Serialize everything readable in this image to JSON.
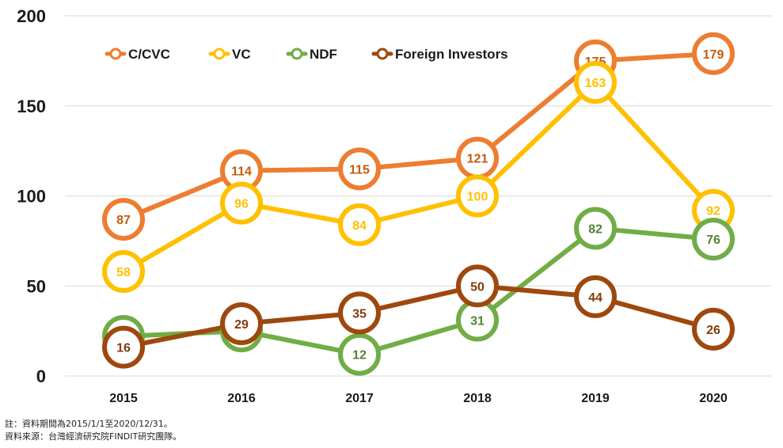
{
  "chart_data": {
    "type": "line",
    "title": "",
    "xlabel": "",
    "ylabel": "",
    "categories": [
      "2015",
      "2016",
      "2017",
      "2018",
      "2019",
      "2020"
    ],
    "ylim": [
      0,
      200
    ],
    "yticks": [
      "0",
      "50",
      "100",
      "150",
      "200"
    ],
    "grid": true,
    "legend_position": "top",
    "series": [
      {
        "name": "C/CVC",
        "color": "#ED7D31",
        "label_color": "#C55A11",
        "values": [
          87,
          114,
          115,
          121,
          175,
          179
        ]
      },
      {
        "name": "VC",
        "color": "#FFC000",
        "label_color": "#FFC000",
        "values": [
          58,
          96,
          84,
          100,
          163,
          92
        ]
      },
      {
        "name": "NDF",
        "color": "#70AD47",
        "label_color": "#548235",
        "values": [
          22,
          25,
          12,
          31,
          82,
          76
        ]
      },
      {
        "name": "Foreign Investors",
        "color": "#9E480E",
        "label_color": "#843C0C",
        "values": [
          16,
          29,
          35,
          50,
          44,
          26
        ]
      }
    ]
  },
  "notes": {
    "period": "註：資料期間為2015/1/1至2020/12/31。",
    "source": "資料來源：台灣經濟研究院FINDIT研究團隊。"
  }
}
